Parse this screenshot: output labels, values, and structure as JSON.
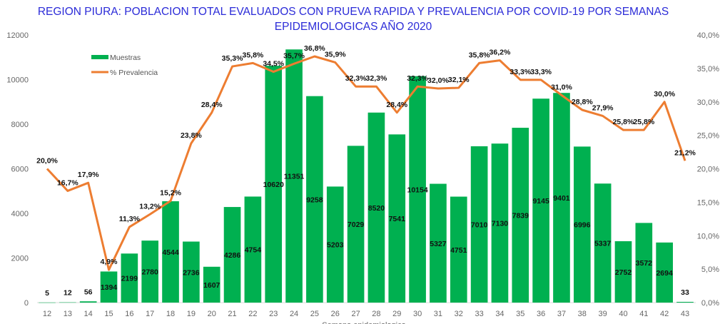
{
  "chart_data": {
    "type": "bar+line",
    "title": "REGION PIURA: POBLACION TOTAL EVALUADOS CON PRUEVA RAPIDA Y PREVALENCIA POR COVID-19 POR SEMANAS EPIDEMIOLOGICAS  AÑO 2020",
    "xlabel": "Semana epidemiologica",
    "categories": [
      "12",
      "13",
      "14",
      "15",
      "16",
      "17",
      "18",
      "19",
      "20",
      "21",
      "22",
      "23",
      "24",
      "25",
      "26",
      "27",
      "28",
      "29",
      "30",
      "31",
      "32",
      "33",
      "34",
      "35",
      "36",
      "37",
      "38",
      "39",
      "40",
      "41",
      "42",
      "43"
    ],
    "series": [
      {
        "name": "Muestras",
        "type": "bar",
        "axis": "left",
        "color": "#00b050",
        "values": [
          5,
          12,
          56,
          1394,
          2199,
          2780,
          4544,
          2736,
          1607,
          4286,
          4754,
          10620,
          11351,
          9258,
          5203,
          7029,
          8520,
          7541,
          10154,
          5327,
          4751,
          7010,
          7130,
          7839,
          9145,
          9401,
          6996,
          5337,
          2752,
          3572,
          2694,
          33
        ]
      },
      {
        "name": "% Prevalencia",
        "type": "line",
        "axis": "right",
        "color": "#ed7d31",
        "values": [
          20.0,
          16.7,
          17.9,
          4.9,
          11.3,
          13.2,
          15.2,
          23.8,
          28.4,
          35.3,
          35.8,
          34.5,
          35.7,
          36.8,
          35.9,
          32.3,
          32.3,
          28.4,
          32.3,
          32.0,
          32.1,
          35.8,
          36.2,
          33.3,
          33.3,
          31.0,
          28.8,
          27.9,
          25.8,
          25.8,
          30.0,
          21.2
        ]
      }
    ],
    "ylim_left": [
      0,
      12000
    ],
    "yticks_left": [
      "0",
      "2000",
      "4000",
      "6000",
      "8000",
      "10000",
      "12000"
    ],
    "ylim_right": [
      0,
      40
    ],
    "yticks_right": [
      "0,0%",
      "5,0%",
      "10,0%",
      "15,0%",
      "20,0%",
      "25,0%",
      "30,0%",
      "35,0%",
      "40,0%"
    ],
    "grid": false,
    "legend": "top-left"
  }
}
